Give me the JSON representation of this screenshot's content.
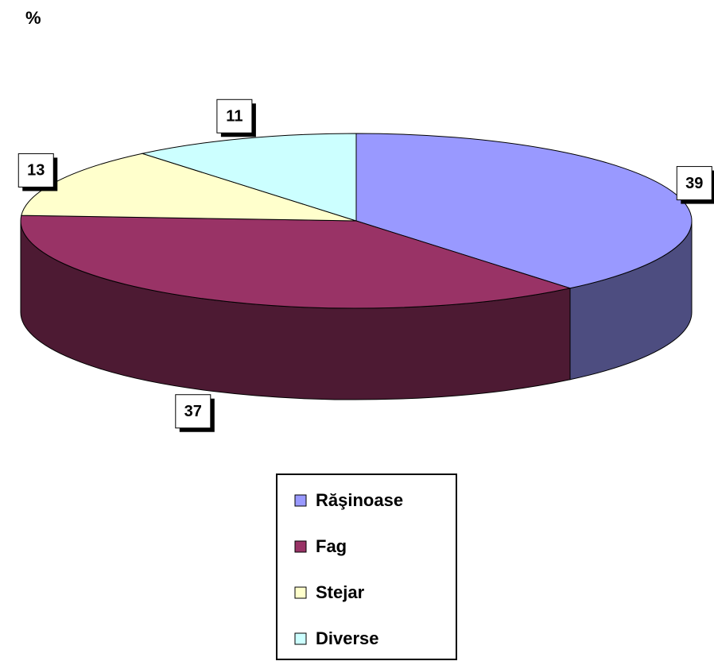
{
  "chart_data": {
    "type": "pie",
    "title": "%",
    "categories": [
      "Răşinoase",
      "Fag",
      "Stejar",
      "Diverse"
    ],
    "values": [
      39,
      37,
      13,
      11
    ],
    "colors": [
      "#9999ff",
      "#993366",
      "#ffffcc",
      "#ccffff"
    ],
    "legend": "bottom"
  }
}
